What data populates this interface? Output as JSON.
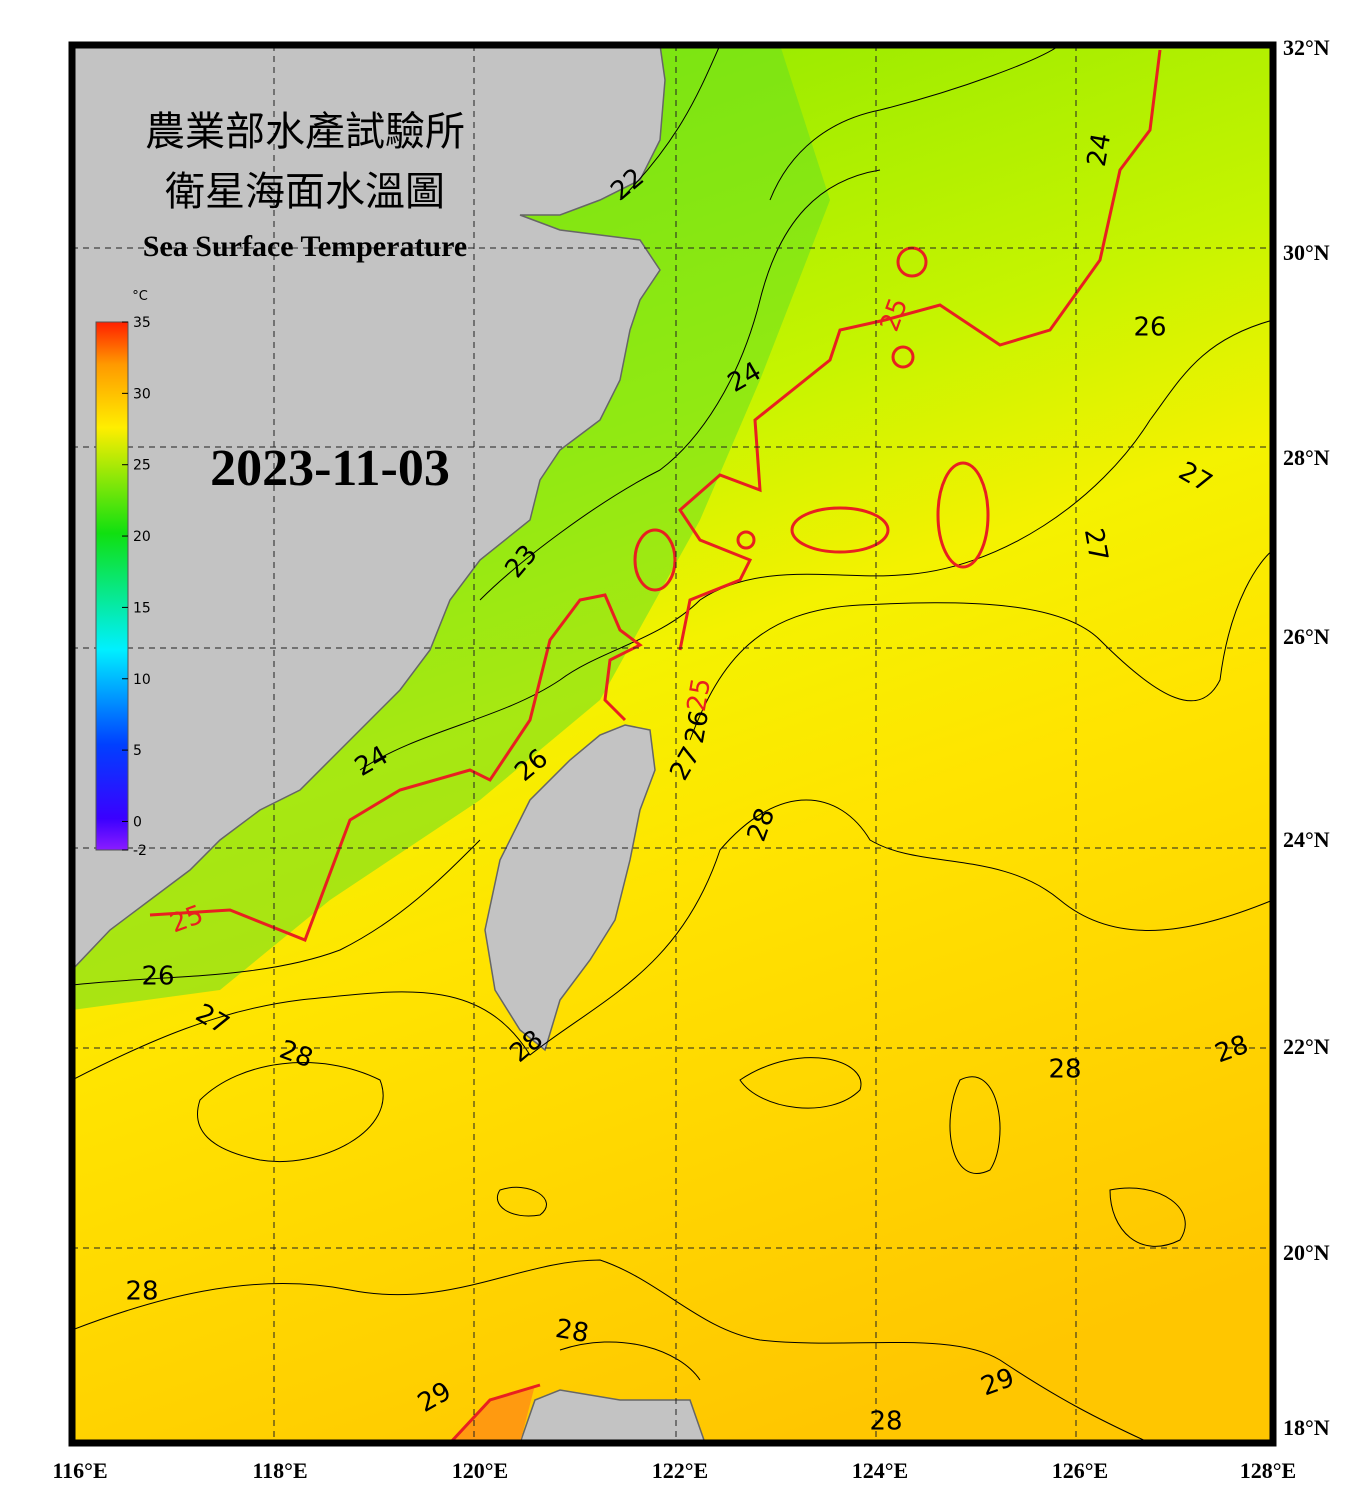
{
  "header": {
    "title_zh_1": "農業部水產試驗所",
    "title_zh_2": "衛星海面水溫圖",
    "title_en": "Sea Surface Temperature"
  },
  "date": "2023-11-03",
  "colorbar": {
    "unit": "°C",
    "range": [
      -2,
      35
    ],
    "ticks": [
      35,
      30,
      25,
      20,
      15,
      10,
      5,
      0,
      -2
    ]
  },
  "lat_labels": [
    "32°N",
    "30°N",
    "28°N",
    "26°N",
    "24°N",
    "22°N",
    "20°N",
    "18°N"
  ],
  "lon_labels": [
    "116°E",
    "118°E",
    "120°E",
    "122°E",
    "124°E",
    "126°E",
    "128°E"
  ],
  "contour_labels": [
    22,
    24,
    25,
    26,
    24,
    27,
    23,
    27,
    25,
    26,
    27,
    24,
    26,
    28,
    25,
    26,
    27,
    28,
    28,
    28,
    28,
    28,
    28,
    29,
    29,
    28
  ]
}
